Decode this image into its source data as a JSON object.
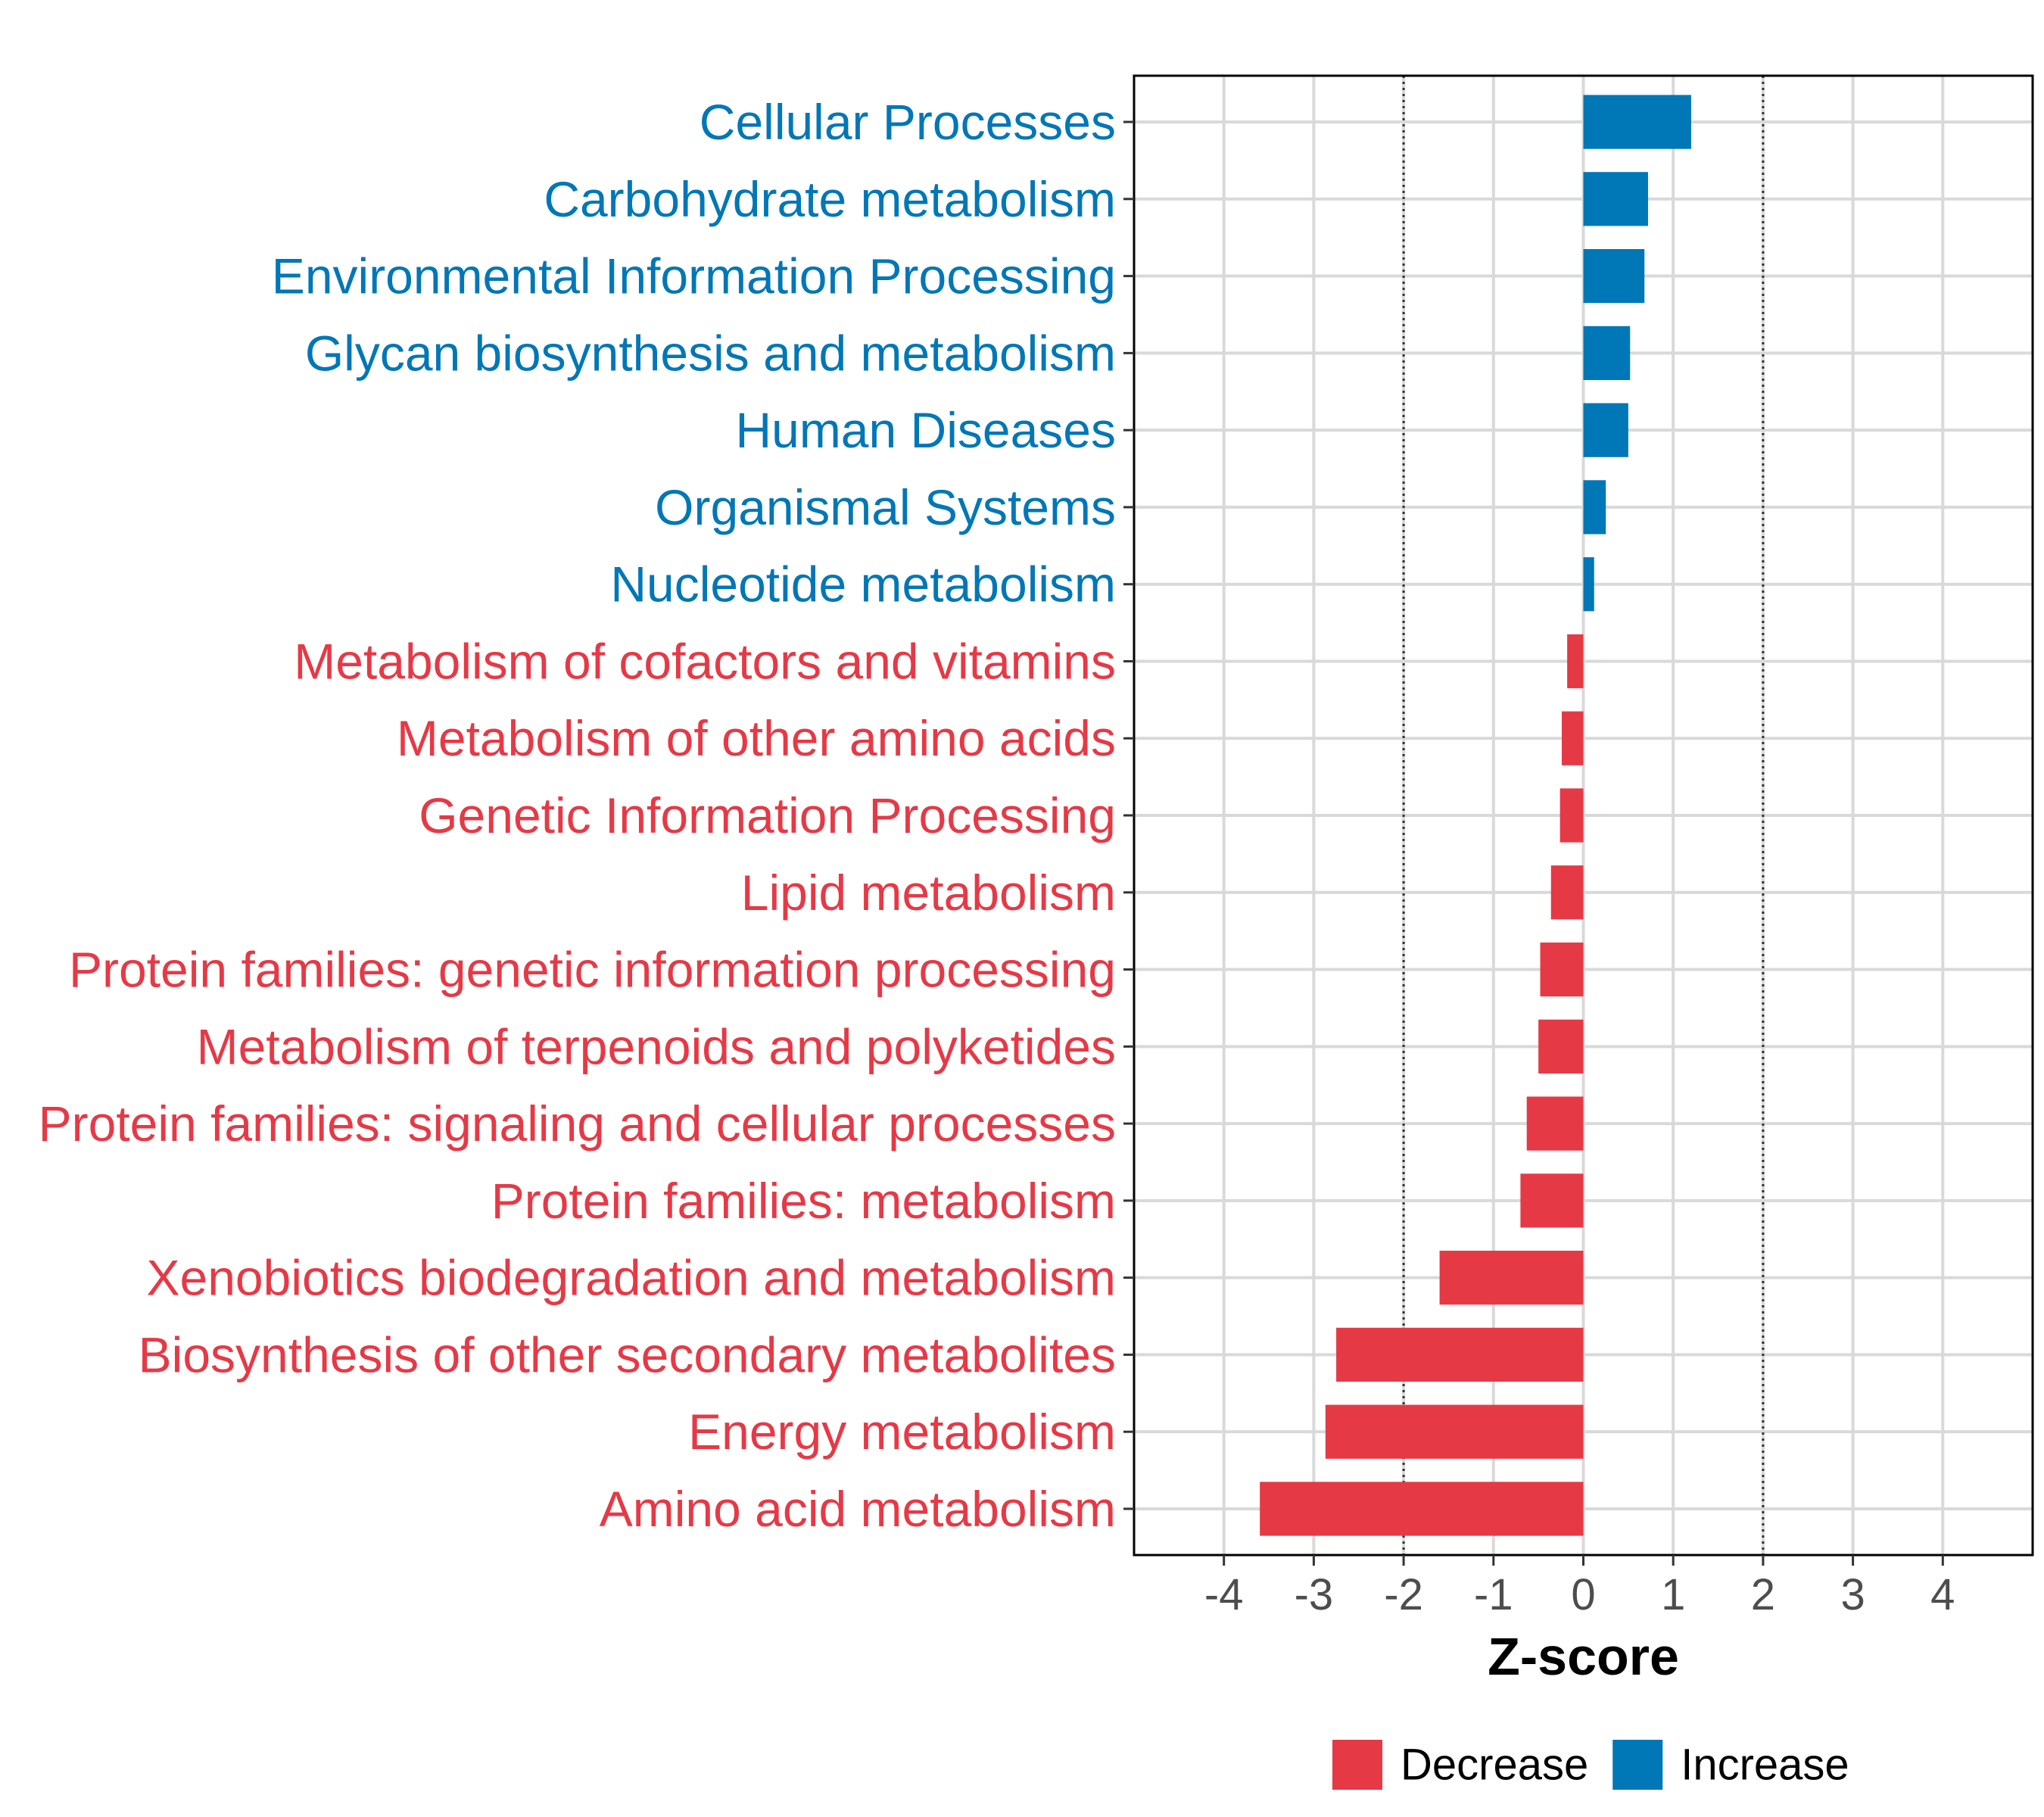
{
  "chart_data": {
    "type": "bar",
    "orientation": "horizontal",
    "xlabel": "Z-score",
    "xlim": [
      -5,
      5
    ],
    "xticks": [
      -4,
      -3,
      -2,
      -1,
      0,
      1,
      2,
      3,
      4
    ],
    "reference_lines": [
      -2,
      2
    ],
    "categories": [
      "Cellular Processes",
      "Carbohydrate metabolism",
      "Environmental Information Processing",
      "Glycan biosynthesis and metabolism",
      "Human Diseases",
      "Organismal Systems",
      "Nucleotide metabolism",
      "Metabolism of cofactors and vitamins",
      "Metabolism of other amino acids",
      "Genetic Information Processing",
      "Lipid metabolism",
      "Protein families: genetic information processing",
      "Metabolism of terpenoids and polyketides",
      "Protein families: signaling and cellular processes",
      "Protein families: metabolism",
      "Xenobiotics biodegradation and metabolism",
      "Biosynthesis of other secondary metabolites",
      "Energy metabolism",
      "Amino acid metabolism"
    ],
    "values": [
      1.2,
      0.72,
      0.68,
      0.52,
      0.5,
      0.25,
      0.12,
      -0.18,
      -0.24,
      -0.26,
      -0.36,
      -0.48,
      -0.5,
      -0.63,
      -0.7,
      -1.6,
      -2.75,
      -2.87,
      -3.6
    ],
    "legend": {
      "position": "bottom",
      "entries": [
        {
          "label": "Decrease",
          "color": "#e63946"
        },
        {
          "label": "Increase",
          "color": "#0077b6"
        }
      ]
    },
    "colors": {
      "decrease": "#e63946",
      "increase": "#0077b6"
    }
  }
}
